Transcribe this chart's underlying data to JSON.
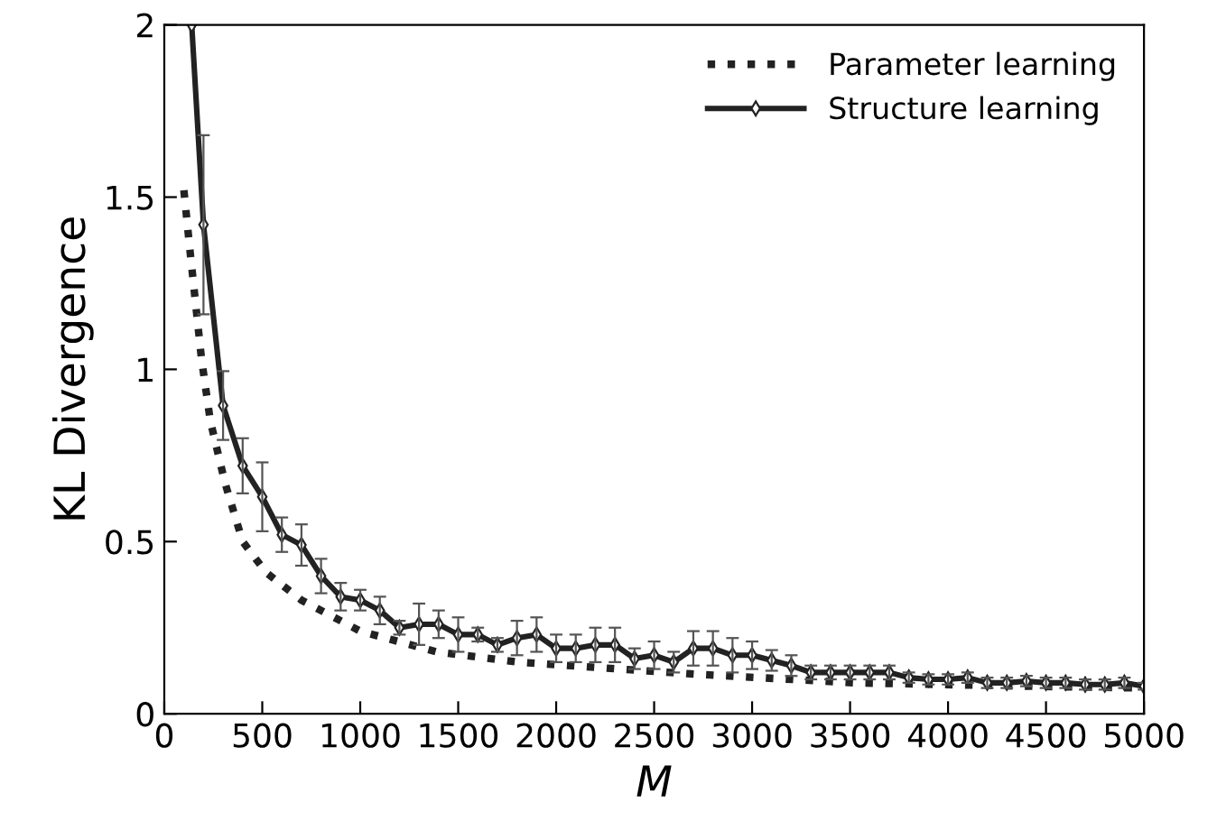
{
  "chart_data": {
    "type": "line",
    "xlabel": "M",
    "ylabel": "KL Divergence",
    "xlim": [
      0,
      5000
    ],
    "ylim": [
      0,
      2
    ],
    "xticks": [
      0,
      500,
      1000,
      1500,
      2000,
      2500,
      3000,
      3500,
      4000,
      4500,
      5000
    ],
    "yticks": [
      0,
      0.5,
      1,
      1.5,
      2
    ],
    "grid": false,
    "legend": "top right",
    "series": [
      {
        "name": "Parameter learning",
        "color": "#222222",
        "line_style": "dotted",
        "marker": "none",
        "x": [
          100,
          132,
          190,
          235,
          310,
          400,
          520,
          700,
          1000,
          1390,
          1810,
          2710,
          3520,
          4420,
          5000
        ],
        "values": [
          1.52,
          1.34,
          1.03,
          0.85,
          0.67,
          0.5,
          0.41,
          0.33,
          0.24,
          0.18,
          0.15,
          0.115,
          0.09,
          0.08,
          0.075
        ]
      },
      {
        "name": "Structure learning",
        "color": "#222222",
        "line_style": "solid",
        "marker": "diamond",
        "x": [
          140,
          200,
          300,
          400,
          500,
          600,
          700,
          800,
          900,
          1000,
          1100,
          1200,
          1300,
          1400,
          1500,
          1600,
          1700,
          1800,
          1900,
          2000,
          2100,
          2200,
          2300,
          2400,
          2500,
          2600,
          2700,
          2800,
          2900,
          3000,
          3100,
          3200,
          3300,
          3400,
          3500,
          3600,
          3700,
          3800,
          3900,
          4000,
          4100,
          4200,
          4300,
          4400,
          4500,
          4600,
          4700,
          4800,
          4900,
          5000
        ],
        "values": [
          2.0,
          1.42,
          0.895,
          0.72,
          0.63,
          0.52,
          0.49,
          0.4,
          0.34,
          0.33,
          0.3,
          0.25,
          0.26,
          0.26,
          0.23,
          0.23,
          0.2,
          0.22,
          0.23,
          0.19,
          0.19,
          0.2,
          0.2,
          0.16,
          0.17,
          0.15,
          0.19,
          0.19,
          0.17,
          0.17,
          0.155,
          0.14,
          0.12,
          0.12,
          0.12,
          0.12,
          0.12,
          0.105,
          0.1,
          0.1,
          0.105,
          0.09,
          0.09,
          0.095,
          0.09,
          0.09,
          0.085,
          0.085,
          0.09,
          0.08
        ],
        "errors": [
          null,
          0.26,
          0.1,
          0.08,
          0.1,
          0.05,
          0.06,
          0.05,
          0.04,
          0.03,
          0.04,
          0.02,
          0.06,
          0.04,
          0.05,
          0.02,
          0.02,
          0.05,
          0.05,
          0.04,
          0.04,
          0.05,
          0.05,
          0.03,
          0.04,
          0.03,
          0.05,
          0.05,
          0.05,
          0.04,
          0.03,
          0.03,
          0.02,
          0.02,
          0.02,
          0.02,
          0.02,
          0.015,
          0.015,
          0.015,
          0.015,
          0.015,
          0.015,
          0.015,
          0.015,
          0.015,
          0.015,
          0.015,
          0.015,
          0.01
        ]
      }
    ]
  }
}
